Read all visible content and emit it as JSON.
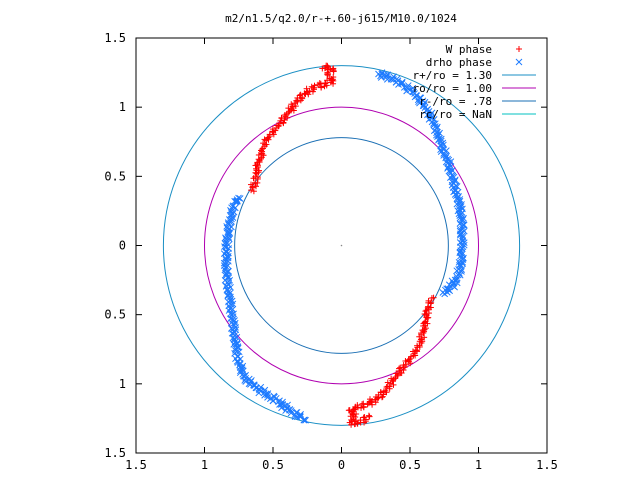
{
  "chart_data": {
    "type": "scatter",
    "title": "m2/n1.5/q2.0/r-+.60-j615/M10.0/1024",
    "xlim": [
      -1.5,
      1.5
    ],
    "ylim": [
      -1.5,
      1.5
    ],
    "x_ticks": [
      -1.5,
      -1,
      -0.5,
      0,
      0.5,
      1,
      1.5
    ],
    "y_ticks": [
      -1.5,
      -1,
      -0.5,
      0,
      0.5,
      1,
      1.5
    ],
    "x_tick_labels": [
      "1.5",
      "1",
      "0.5",
      "0",
      "0.5",
      "1",
      "1.5"
    ],
    "y_tick_labels": [
      "1.5",
      "1",
      "0.5",
      "0",
      "0.5",
      "1",
      "1.5"
    ],
    "grid": false,
    "legend_position": "top-right",
    "series": [
      {
        "name": "W phase",
        "marker": "+",
        "color": "#ff0000",
        "points": [
          [
            -0.14,
            1.28
          ],
          [
            -0.1,
            1.29
          ],
          [
            -0.06,
            1.28
          ],
          [
            -0.1,
            1.24
          ],
          [
            -0.06,
            1.19
          ],
          [
            -0.12,
            1.17
          ],
          [
            -0.2,
            1.14
          ],
          [
            -0.27,
            1.1
          ],
          [
            -0.32,
            1.05
          ],
          [
            -0.38,
            0.97
          ],
          [
            -0.45,
            0.88
          ],
          [
            -0.5,
            0.82
          ],
          [
            -0.55,
            0.76
          ],
          [
            -0.58,
            0.68
          ],
          [
            -0.61,
            0.58
          ],
          [
            -0.62,
            0.52
          ],
          [
            -0.63,
            0.45
          ],
          [
            -0.66,
            0.4
          ],
          [
            0.66,
            -0.38
          ],
          [
            0.63,
            -0.45
          ],
          [
            0.62,
            -0.52
          ],
          [
            0.61,
            -0.58
          ],
          [
            0.58,
            -0.68
          ],
          [
            0.55,
            -0.76
          ],
          [
            0.5,
            -0.82
          ],
          [
            0.45,
            -0.88
          ],
          [
            0.38,
            -0.97
          ],
          [
            0.32,
            -1.05
          ],
          [
            0.27,
            -1.1
          ],
          [
            0.2,
            -1.14
          ],
          [
            0.12,
            -1.17
          ],
          [
            0.06,
            -1.19
          ],
          [
            0.1,
            -1.24
          ],
          [
            0.06,
            -1.28
          ],
          [
            0.1,
            -1.29
          ],
          [
            0.14,
            -1.28
          ],
          [
            0.2,
            -1.23
          ]
        ]
      },
      {
        "name": "drho phase",
        "marker": "x",
        "color": "#1e7bff",
        "points": [
          [
            0.27,
            1.24
          ],
          [
            0.33,
            1.22
          ],
          [
            0.38,
            1.2
          ],
          [
            0.44,
            1.17
          ],
          [
            0.52,
            1.11
          ],
          [
            0.6,
            1.02
          ],
          [
            0.66,
            0.92
          ],
          [
            0.7,
            0.82
          ],
          [
            0.74,
            0.7
          ],
          [
            0.78,
            0.6
          ],
          [
            0.82,
            0.45
          ],
          [
            0.86,
            0.3
          ],
          [
            0.88,
            0.18
          ],
          [
            0.88,
            0.05
          ],
          [
            0.88,
            -0.05
          ],
          [
            0.87,
            -0.15
          ],
          [
            0.84,
            -0.25
          ],
          [
            0.78,
            -0.32
          ],
          [
            0.74,
            -0.34
          ],
          [
            -0.74,
            0.34
          ],
          [
            -0.78,
            0.32
          ],
          [
            -0.8,
            0.22
          ],
          [
            -0.83,
            0.1
          ],
          [
            -0.84,
            -0.05
          ],
          [
            -0.84,
            -0.2
          ],
          [
            -0.82,
            -0.35
          ],
          [
            -0.8,
            -0.5
          ],
          [
            -0.78,
            -0.65
          ],
          [
            -0.76,
            -0.8
          ],
          [
            -0.74,
            -0.88
          ],
          [
            -0.7,
            -0.96
          ],
          [
            -0.62,
            -1.03
          ],
          [
            -0.54,
            -1.08
          ],
          [
            -0.46,
            -1.13
          ],
          [
            -0.38,
            -1.19
          ],
          [
            -0.3,
            -1.24
          ],
          [
            -0.27,
            -1.26
          ]
        ]
      },
      {
        "name": "r+/ro = 1.30",
        "type": "circle",
        "radius": 1.3,
        "color": "#1a8fc4"
      },
      {
        "name": "ro/ro = 1.00",
        "type": "circle",
        "radius": 1.0,
        "color": "#b000b0"
      },
      {
        "name": "r-/ro = .78",
        "type": "circle",
        "radius": 0.78,
        "color": "#1a6fb4"
      },
      {
        "name": "rc/ro = NaN",
        "type": "circle",
        "radius": null,
        "color": "#00c0c0"
      }
    ]
  }
}
